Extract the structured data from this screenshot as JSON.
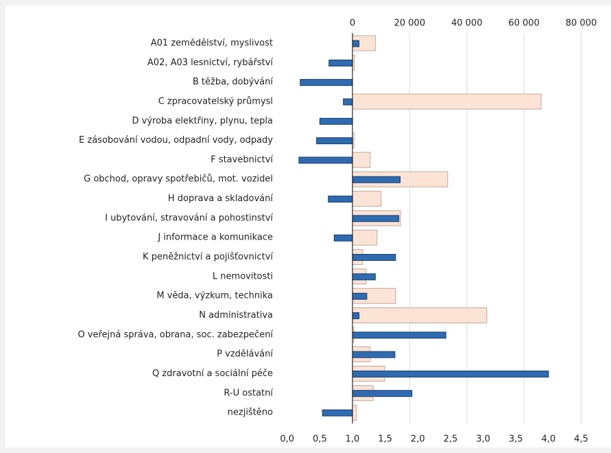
{
  "chart_data": {
    "type": "bar",
    "orientation": "horizontal",
    "categories": [
      "A01  zemědělství, myslivost",
      "A02, A03  lesnictví, rybářství",
      "B těžba, dobývání",
      "C  zpracovatelský průmysl",
      "D  výroba elektřiny, plynu, tepla",
      "E  zásobování vodou, odpadní vody, odpady",
      "F  stavebnictví",
      "G  obchod, opravy spotřebičů, mot. vozidel",
      "H  doprava a skladování",
      "I  ubytování, stravování a pohostinství",
      "J  informace a komunikace",
      "K   peněžnictví a pojišťovnictví",
      "L  nemovitosti",
      "M  věda, výzkum, technika",
      "N  administrativa",
      "O  veřejná správa, obrana, soc. zabezpečení",
      "P  vzdělávání",
      "Q  zdravotní a sociální péče",
      "R-U  ostatní",
      "nezjištěno"
    ],
    "series": [
      {
        "color": "#fbe3d6",
        "axis": "x2",
        "values": [
          8000,
          700,
          0,
          66000,
          0,
          500,
          6200,
          33300,
          10000,
          16800,
          8600,
          3600,
          4800,
          15100,
          47000,
          500,
          6200,
          11300,
          7200,
          1400
        ]
      },
      {
        "color": "#2e6bb0",
        "base": 1,
        "values": [
          1.1,
          0.64,
          0.2,
          0.86,
          0.5,
          0.45,
          0.18,
          1.73,
          0.63,
          1.71,
          0.72,
          1.66,
          1.35,
          1.22,
          1.1,
          2.43,
          1.65,
          4.0,
          1.91,
          0.54
        ]
      }
    ],
    "xlim": [
      0,
      4.5
    ],
    "xticks": [
      {
        "value": 0,
        "label": "0,0"
      },
      {
        "value": 0.5,
        "label": "0,5"
      },
      {
        "value": 1,
        "label": "1,0"
      },
      {
        "value": 1.5,
        "label": "1,5"
      },
      {
        "value": 2,
        "label": "2,0"
      },
      {
        "value": 2.5,
        "label": "2,5"
      },
      {
        "value": 3,
        "label": "3,0"
      },
      {
        "value": 3.5,
        "label": "3,5"
      },
      {
        "value": 4,
        "label": "4,0"
      },
      {
        "value": 4.5,
        "label": "4,5"
      }
    ],
    "x2lim": [
      -22857,
      80000
    ],
    "x2ticks": [
      0,
      {
        "value": 20000,
        "label": "20 000"
      },
      {
        "value": 40000,
        "label": "40 000"
      },
      {
        "value": 60000,
        "label": "60 000"
      },
      {
        "value": 80000,
        "label": "80 000"
      }
    ],
    "grid": true
  }
}
